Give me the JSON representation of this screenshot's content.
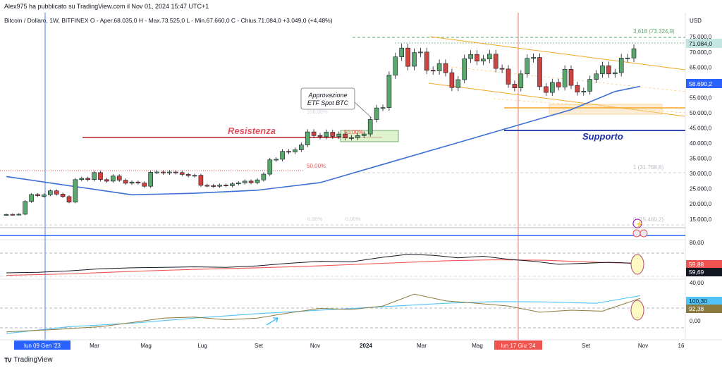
{
  "header": {
    "published": "Alex975 ha pubblicato su TradingView.com il Nov 01, 2024 15:47 UTC+1",
    "symbol": "Bitcoin / Dollaro, 1W, BITFINEX",
    "ohlc": "O - Aper.68.035,0  H - Max.73.525,0  L - Min.67.660,0  C - Chius.71.084,0  +3.049,0 (+4,48%)"
  },
  "footer": {
    "brand": "TradingView",
    "logo": "TV"
  },
  "annotations": {
    "etf_note_line1": "Approvazione",
    "etf_note_line2": "ETF Spot BTC",
    "resistance": "Resistenza",
    "support": "Supporto"
  },
  "fib_labels": {
    "f3618": "3,618 (73.324,9)",
    "f1": "1 (31.768,8)",
    "f0": "0 (15.460,2)",
    "f100": "100,00%",
    "f50a": "50,00%",
    "f50b": "50,00%",
    "f0a": "0,00%",
    "f0b": "0,00%"
  },
  "price_axis": {
    "currency": "USD",
    "ticks": [
      "75.000,0",
      "70.000,0",
      "65.000,0",
      "60.000,0",
      "55.000,0",
      "50.000,0",
      "45.000,0",
      "40.000,0",
      "35.000,0",
      "30.000,0",
      "25.000,0",
      "20.000,0",
      "15.000,0"
    ],
    "last_price": "71.084,0",
    "ma_value": "58.690,2"
  },
  "rsi_axis": {
    "tick_top": "80,00",
    "val_ma": "59,88",
    "val_rsi": "59,69"
  },
  "ind2_axis": {
    "tick_top": "40,00",
    "tick_zero": "0,00",
    "val_signal": "100,30",
    "val_line": "92,38"
  },
  "time_axis": {
    "labels": [
      "Mar",
      "Mag",
      "Lug",
      "Set",
      "Nov",
      "2024",
      "Mar",
      "Mag",
      "Set",
      "Nov",
      "16"
    ],
    "highlight_left": "lun 09 Gen '23",
    "highlight_right": "lun 17 Giu '24"
  },
  "colors": {
    "up": "#5aa86b",
    "down": "#d1433f",
    "ma": "#3d6fd6",
    "resistance": "#e84f5c",
    "support": "#1a2fa8",
    "fib": "#f5a623",
    "accent_blue": "#2962ff"
  },
  "chart_data": {
    "type": "candlestick",
    "title": "Bitcoin / Dollaro, 1W, BITFINEX",
    "ylabel": "USD",
    "ylim": [
      11000,
      79000
    ],
    "x_start": "2022-12-26",
    "x_interval": "1W",
    "x_end": "2024-12-16",
    "candles": [
      [
        16500,
        16500
      ],
      [
        16550,
        16520
      ],
      [
        16500,
        16600
      ],
      [
        16600,
        20800
      ],
      [
        20800,
        23100
      ],
      [
        23100,
        22700
      ],
      [
        22500,
        23000
      ],
      [
        23000,
        24300
      ],
      [
        24300,
        23200
      ],
      [
        23200,
        22400
      ],
      [
        22400,
        20600
      ],
      [
        20600,
        28000
      ],
      [
        28000,
        28400
      ],
      [
        28400,
        28000
      ],
      [
        28000,
        30300
      ],
      [
        30300,
        28000
      ],
      [
        28000,
        27500
      ],
      [
        27500,
        29200
      ],
      [
        29200,
        27800
      ],
      [
        27800,
        26800
      ],
      [
        26800,
        27200
      ],
      [
        27200,
        26900
      ],
      [
        26900,
        25800
      ],
      [
        25800,
        30400
      ],
      [
        30400,
        30500
      ],
      [
        30500,
        30200
      ],
      [
        30200,
        30500
      ],
      [
        30500,
        30300
      ],
      [
        30300,
        29700
      ],
      [
        29700,
        29300
      ],
      [
        29300,
        29400
      ],
      [
        29400,
        26100
      ],
      [
        26100,
        26000
      ],
      [
        26000,
        25800
      ],
      [
        25800,
        26200
      ],
      [
        26200,
        26000
      ],
      [
        26000,
        26600
      ],
      [
        26600,
        26900
      ],
      [
        26900,
        27500
      ],
      [
        27500,
        27000
      ],
      [
        27000,
        27900
      ],
      [
        27900,
        29800
      ],
      [
        29800,
        34500
      ],
      [
        34500,
        34700
      ],
      [
        34700,
        37300
      ],
      [
        37300,
        37100
      ],
      [
        37100,
        37800
      ],
      [
        37800,
        39400
      ],
      [
        39400,
        43700
      ],
      [
        43700,
        42500
      ],
      [
        42500,
        42100
      ],
      [
        42100,
        43600
      ],
      [
        43600,
        42200
      ],
      [
        42200,
        43000
      ],
      [
        43000,
        41700
      ],
      [
        41700,
        41800
      ],
      [
        41800,
        42500
      ],
      [
        42500,
        43000
      ],
      [
        43000,
        47800
      ],
      [
        47800,
        51600
      ],
      [
        51600,
        51700
      ],
      [
        51700,
        62400
      ],
      [
        62400,
        68400
      ],
      [
        68400,
        71300
      ],
      [
        71300,
        65300
      ],
      [
        65300,
        69800
      ],
      [
        69800,
        70000
      ],
      [
        70000,
        64000
      ],
      [
        64000,
        63800
      ],
      [
        63800,
        66200
      ],
      [
        66200,
        63200
      ],
      [
        63200,
        58300
      ],
      [
        58300,
        60900
      ],
      [
        60900,
        67800
      ],
      [
        67800,
        69200
      ],
      [
        69200,
        67000
      ],
      [
        67000,
        67700
      ],
      [
        67700,
        69300
      ],
      [
        69300,
        64600
      ],
      [
        64600,
        64400
      ],
      [
        64400,
        59400
      ],
      [
        59400,
        58200
      ],
      [
        58200,
        62800
      ],
      [
        62800,
        67900
      ],
      [
        67900,
        68200
      ],
      [
        68200,
        58600
      ],
      [
        58600,
        56700
      ],
      [
        56700,
        60000
      ],
      [
        60000,
        58500
      ],
      [
        58500,
        64300
      ],
      [
        64300,
        59000
      ],
      [
        59000,
        56800
      ],
      [
        56800,
        57100
      ],
      [
        57100,
        61000
      ],
      [
        61000,
        62800
      ],
      [
        62800,
        65500
      ],
      [
        65500,
        62800
      ],
      [
        62800,
        63200
      ],
      [
        63200,
        68000
      ],
      [
        68000,
        68035
      ],
      [
        68035,
        71084
      ]
    ],
    "moving_average_ylim": [
      11000,
      79000
    ],
    "moving_average": [
      [
        0,
        29000
      ],
      [
        10,
        26000
      ],
      [
        20,
        23000
      ],
      [
        30,
        23500
      ],
      [
        40,
        24500
      ],
      [
        50,
        27000
      ],
      [
        60,
        33000
      ],
      [
        70,
        39000
      ],
      [
        80,
        45000
      ],
      [
        90,
        51000
      ],
      [
        97,
        57000
      ],
      [
        101,
        58690
      ]
    ],
    "indicator1": {
      "ylim": [
        20,
        100
      ],
      "rsi": [
        [
          0,
          41
        ],
        [
          5,
          42
        ],
        [
          10,
          45
        ],
        [
          15,
          49
        ],
        [
          20,
          51
        ],
        [
          25,
          52
        ],
        [
          30,
          53
        ],
        [
          35,
          52
        ],
        [
          40,
          55
        ],
        [
          45,
          60
        ],
        [
          50,
          64
        ],
        [
          55,
          63
        ],
        [
          60,
          72
        ],
        [
          64,
          78
        ],
        [
          68,
          76
        ],
        [
          72,
          71
        ],
        [
          76,
          74
        ],
        [
          80,
          68
        ],
        [
          84,
          64
        ],
        [
          88,
          58
        ],
        [
          92,
          60
        ],
        [
          96,
          62
        ],
        [
          101,
          59.69
        ]
      ],
      "rsi_ma": [
        [
          0,
          36
        ],
        [
          10,
          39
        ],
        [
          20,
          44
        ],
        [
          30,
          48
        ],
        [
          40,
          51
        ],
        [
          50,
          55
        ],
        [
          60,
          60
        ],
        [
          70,
          65
        ],
        [
          78,
          67
        ],
        [
          86,
          66
        ],
        [
          94,
          62
        ],
        [
          101,
          59.88
        ]
      ]
    },
    "indicator2": {
      "ylim": [
        -20,
        140
      ],
      "line": [
        [
          0,
          -5
        ],
        [
          8,
          2
        ],
        [
          15,
          10
        ],
        [
          20,
          22
        ],
        [
          25,
          35
        ],
        [
          30,
          38
        ],
        [
          35,
          30
        ],
        [
          40,
          35
        ],
        [
          45,
          50
        ],
        [
          50,
          63
        ],
        [
          55,
          60
        ],
        [
          60,
          70
        ],
        [
          65,
          105
        ],
        [
          70,
          85
        ],
        [
          75,
          78
        ],
        [
          80,
          70
        ],
        [
          85,
          52
        ],
        [
          90,
          58
        ],
        [
          95,
          55
        ],
        [
          101,
          92.38
        ]
      ],
      "signal": [
        [
          0,
          -10
        ],
        [
          10,
          10
        ],
        [
          20,
          20
        ],
        [
          30,
          35
        ],
        [
          40,
          48
        ],
        [
          50,
          58
        ],
        [
          60,
          68
        ],
        [
          70,
          78
        ],
        [
          78,
          83
        ],
        [
          86,
          82
        ],
        [
          94,
          78
        ],
        [
          101,
          100.3
        ]
      ]
    },
    "levels": {
      "resistance": 42000,
      "support": 44200,
      "blue_line": 12000,
      "fib_3618": 73324.9,
      "fib_1": 31768.8,
      "fib_0": 15460.2,
      "red_dotted": 32000
    }
  }
}
